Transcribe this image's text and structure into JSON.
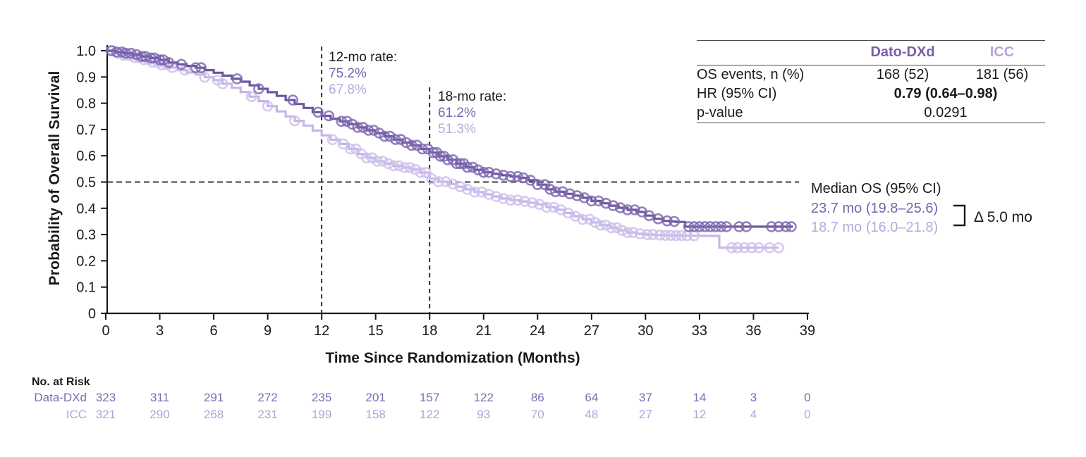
{
  "colors": {
    "dark_line": "#6C58A0",
    "dark_censor": "#7E68B0",
    "dark_text": "#7A63AD",
    "light_line": "#C6B7E6",
    "light_censor": "#CDC0EA",
    "light_text": "#B9A8DC",
    "axis": "#1a1a1a",
    "rule": "#4d4d4d"
  },
  "annotations": {
    "rate12": {
      "label": "12-mo rate:",
      "dark": "75.2%",
      "light": "67.8%",
      "month": 12
    },
    "rate18": {
      "label": "18-mo rate:",
      "dark": "61.2%",
      "light": "51.3%",
      "month": 18
    },
    "median": {
      "label": "Median OS (95% CI)",
      "dark": "23.7 mo (19.8–25.6)",
      "light": "18.7 mo (16.0–21.8)",
      "delta": "Δ 5.0 mo"
    }
  },
  "stats_table": {
    "col_headers": [
      "Dato-DXd",
      "ICC"
    ],
    "rows": [
      {
        "label": "OS events, n (%)",
        "dark": "168 (52)",
        "light": "181 (56)"
      },
      {
        "label": "HR (95% CI)",
        "span": "0.79 (0.64–0.98)"
      },
      {
        "label": "p-value",
        "span": "0.0291"
      }
    ]
  },
  "risk_table": {
    "title": "No. at Risk",
    "months": [
      0,
      3,
      6,
      9,
      12,
      15,
      18,
      21,
      24,
      27,
      30,
      33,
      36,
      39
    ],
    "rows": [
      {
        "label": "Data-DXd",
        "values": [
          323,
          311,
          291,
          272,
          235,
          201,
          157,
          122,
          86,
          64,
          37,
          14,
          3,
          0
        ]
      },
      {
        "label": "ICC",
        "values": [
          321,
          290,
          268,
          231,
          199,
          158,
          122,
          93,
          70,
          48,
          27,
          12,
          4,
          0
        ]
      }
    ]
  },
  "chart_data": {
    "type": "line",
    "subtype": "kaplan-meier-step",
    "xlabel": "Time Since Randomization (Months)",
    "ylabel": "Probability of Overall Survival",
    "xlim": [
      0,
      39
    ],
    "ylim": [
      0,
      1.0
    ],
    "x_ticks": [
      "0",
      "3",
      "6",
      "9",
      "12",
      "15",
      "18",
      "21",
      "24",
      "27",
      "30",
      "33",
      "36",
      "39"
    ],
    "y_ticks": [
      {
        "value": 1.0,
        "label": "1.0"
      },
      {
        "value": 0.9,
        "label": "0.9"
      },
      {
        "value": 0.8,
        "label": "0.8"
      },
      {
        "value": 0.7,
        "label": "0.7"
      },
      {
        "value": 0.6,
        "label": "0.6"
      },
      {
        "value": 0.5,
        "label": "0.5"
      },
      {
        "value": 0.4,
        "label": "0.4"
      },
      {
        "value": 0.3,
        "label": "0.3"
      },
      {
        "value": 0.2,
        "label": "0.2"
      },
      {
        "value": 0.1,
        "label": "0.1"
      },
      {
        "value": 0.0,
        "label": "0"
      }
    ],
    "reference_lines": {
      "horizontal": 0.5,
      "vertical": [
        12,
        18
      ]
    },
    "series": [
      {
        "name": "Dato-DXd",
        "points": [
          [
            0,
            1.0
          ],
          [
            0.5,
            0.995
          ],
          [
            1,
            0.99
          ],
          [
            1.5,
            0.985
          ],
          [
            2,
            0.978
          ],
          [
            2.5,
            0.972
          ],
          [
            3,
            0.965
          ],
          [
            3.5,
            0.955
          ],
          [
            4,
            0.948
          ],
          [
            4.5,
            0.942
          ],
          [
            5,
            0.935
          ],
          [
            5.5,
            0.926
          ],
          [
            6,
            0.916
          ],
          [
            6.5,
            0.905
          ],
          [
            7,
            0.893
          ],
          [
            7.5,
            0.882
          ],
          [
            8,
            0.868
          ],
          [
            8.5,
            0.855
          ],
          [
            9,
            0.842
          ],
          [
            9.5,
            0.828
          ],
          [
            10,
            0.812
          ],
          [
            10.5,
            0.797
          ],
          [
            11,
            0.782
          ],
          [
            11.5,
            0.766
          ],
          [
            12,
            0.752
          ],
          [
            12.5,
            0.741
          ],
          [
            13,
            0.731
          ],
          [
            13.5,
            0.72
          ],
          [
            14,
            0.708
          ],
          [
            14.5,
            0.697
          ],
          [
            15,
            0.686
          ],
          [
            15.5,
            0.674
          ],
          [
            16,
            0.662
          ],
          [
            16.5,
            0.65
          ],
          [
            17,
            0.64
          ],
          [
            17.5,
            0.626
          ],
          [
            18,
            0.612
          ],
          [
            18.5,
            0.598
          ],
          [
            19,
            0.585
          ],
          [
            19.5,
            0.57
          ],
          [
            20,
            0.556
          ],
          [
            20.5,
            0.546
          ],
          [
            21,
            0.537
          ],
          [
            21.5,
            0.531
          ],
          [
            22,
            0.526
          ],
          [
            22.5,
            0.521
          ],
          [
            23,
            0.516
          ],
          [
            23.5,
            0.507
          ],
          [
            24,
            0.49
          ],
          [
            24.5,
            0.472
          ],
          [
            25,
            0.463
          ],
          [
            25.5,
            0.455
          ],
          [
            26,
            0.448
          ],
          [
            26.5,
            0.44
          ],
          [
            27,
            0.428
          ],
          [
            27.5,
            0.419
          ],
          [
            28,
            0.41
          ],
          [
            28.5,
            0.402
          ],
          [
            29,
            0.394
          ],
          [
            29.5,
            0.386
          ],
          [
            30,
            0.372
          ],
          [
            30.5,
            0.36
          ],
          [
            31,
            0.352
          ],
          [
            31.7,
            0.348
          ],
          [
            32.2,
            0.33
          ],
          [
            38.2,
            0.33
          ]
        ],
        "censor_times": [
          0.3,
          0.6,
          0.9,
          1.1,
          1.4,
          1.7,
          2.0,
          2.2,
          2.5,
          2.7,
          3.0,
          3.2,
          3.5,
          4.2,
          5.0,
          5.3,
          7.3,
          8.5,
          10.4,
          11.8,
          12.4,
          13.1,
          13.4,
          13.7,
          14.0,
          14.3,
          14.6,
          14.9,
          15.2,
          15.5,
          15.8,
          16.1,
          16.4,
          16.7,
          17.0,
          17.3,
          17.6,
          17.9,
          18.2,
          18.4,
          18.6,
          18.8,
          19.0,
          19.3,
          19.5,
          19.7,
          19.9,
          20.1,
          20.4,
          20.7,
          21.0,
          21.3,
          21.7,
          22.1,
          22.5,
          22.9,
          23.2,
          23.6,
          24.0,
          24.4,
          24.7,
          25.0,
          25.4,
          25.8,
          26.2,
          26.6,
          27.0,
          27.4,
          27.8,
          28.2,
          28.6,
          29.0,
          29.4,
          29.8,
          30.2,
          30.7,
          31.2,
          31.6,
          32.4,
          32.7,
          33.0,
          33.3,
          33.6,
          33.9,
          34.2,
          34.5,
          35.2,
          35.6,
          37.0,
          37.4,
          37.8,
          38.1
        ]
      },
      {
        "name": "ICC",
        "points": [
          [
            0,
            1.0
          ],
          [
            0.5,
            0.99
          ],
          [
            1,
            0.982
          ],
          [
            1.5,
            0.974
          ],
          [
            2,
            0.966
          ],
          [
            2.5,
            0.956
          ],
          [
            3,
            0.946
          ],
          [
            3.5,
            0.936
          ],
          [
            4,
            0.926
          ],
          [
            4.5,
            0.917
          ],
          [
            5,
            0.909
          ],
          [
            5.5,
            0.899
          ],
          [
            6,
            0.888
          ],
          [
            6.5,
            0.874
          ],
          [
            7,
            0.859
          ],
          [
            7.5,
            0.843
          ],
          [
            8,
            0.825
          ],
          [
            8.5,
            0.808
          ],
          [
            9,
            0.789
          ],
          [
            9.5,
            0.769
          ],
          [
            10,
            0.75
          ],
          [
            10.5,
            0.733
          ],
          [
            11,
            0.715
          ],
          [
            11.5,
            0.696
          ],
          [
            12,
            0.678
          ],
          [
            12.5,
            0.661
          ],
          [
            13,
            0.645
          ],
          [
            13.5,
            0.626
          ],
          [
            14,
            0.607
          ],
          [
            14.5,
            0.592
          ],
          [
            15,
            0.579
          ],
          [
            15.5,
            0.57
          ],
          [
            16,
            0.562
          ],
          [
            16.5,
            0.555
          ],
          [
            17,
            0.548
          ],
          [
            17.5,
            0.536
          ],
          [
            18,
            0.513
          ],
          [
            18.5,
            0.501
          ],
          [
            19,
            0.492
          ],
          [
            19.5,
            0.482
          ],
          [
            20,
            0.472
          ],
          [
            20.5,
            0.462
          ],
          [
            21,
            0.453
          ],
          [
            21.5,
            0.445
          ],
          [
            22,
            0.437
          ],
          [
            22.5,
            0.431
          ],
          [
            23,
            0.426
          ],
          [
            23.5,
            0.421
          ],
          [
            24,
            0.415
          ],
          [
            24.5,
            0.404
          ],
          [
            25,
            0.394
          ],
          [
            25.5,
            0.382
          ],
          [
            26,
            0.37
          ],
          [
            26.5,
            0.358
          ],
          [
            27,
            0.346
          ],
          [
            27.5,
            0.336
          ],
          [
            28,
            0.326
          ],
          [
            28.5,
            0.316
          ],
          [
            29,
            0.308
          ],
          [
            29.5,
            0.303
          ],
          [
            30,
            0.3
          ],
          [
            30.5,
            0.298
          ],
          [
            31,
            0.297
          ],
          [
            32,
            0.296
          ],
          [
            33,
            0.295
          ],
          [
            34.1,
            0.295
          ],
          [
            34.1,
            0.25
          ],
          [
            37.4,
            0.25
          ]
        ],
        "censor_times": [
          0.4,
          0.7,
          1.0,
          1.3,
          1.6,
          1.9,
          2.1,
          2.4,
          2.6,
          2.9,
          3.1,
          3.4,
          3.7,
          4.4,
          5.5,
          6.2,
          6.5,
          8.1,
          9.0,
          10.5,
          12.6,
          13.2,
          13.6,
          13.9,
          14.2,
          14.5,
          14.8,
          15.1,
          15.4,
          15.7,
          16.0,
          16.3,
          16.6,
          16.9,
          17.2,
          17.5,
          17.8,
          18.1,
          18.5,
          18.9,
          19.3,
          19.7,
          20.1,
          20.5,
          20.9,
          21.3,
          21.7,
          22.1,
          22.5,
          22.9,
          23.3,
          23.7,
          24.1,
          24.5,
          24.9,
          25.3,
          25.7,
          26.1,
          26.5,
          26.9,
          27.2,
          27.5,
          27.8,
          28.1,
          28.4,
          28.7,
          29.0,
          29.3,
          29.7,
          30.1,
          30.4,
          30.8,
          31.1,
          31.4,
          31.7,
          32.0,
          32.3,
          32.7,
          34.8,
          35.1,
          35.5,
          35.9,
          36.3,
          36.9,
          37.4
        ]
      }
    ]
  }
}
